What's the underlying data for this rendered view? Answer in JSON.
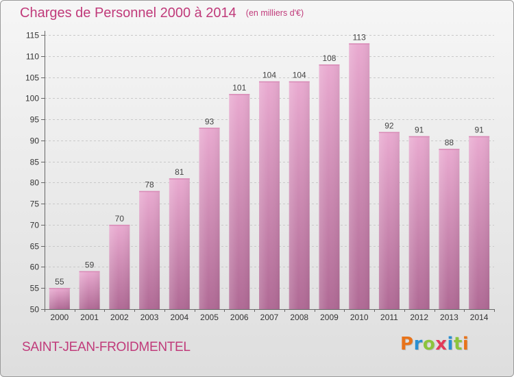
{
  "header": {
    "title": "Charges de Personnel 2000 à 2014",
    "unit": "(en milliers d'€)"
  },
  "footer": {
    "commune": "SAINT-JEAN-FROIDMENTEL",
    "logo_letters": [
      "P",
      "r",
      "o",
      "x",
      "i",
      "t",
      "i"
    ],
    "logo_colors": [
      "#e8731a",
      "#2a8fd1",
      "#8cc43c",
      "#e23a5a",
      "#2a8fd1",
      "#8cc43c",
      "#e8731a"
    ]
  },
  "colors": {
    "title": "#c03a7a",
    "bar_top": "#e9aad0",
    "bar_bottom": "#b06a95",
    "grid": "#c8c8c8"
  },
  "chart_data": {
    "type": "bar",
    "title": "Charges de Personnel 2000 à 2014",
    "xlabel": "",
    "ylabel": "",
    "categories": [
      "2000",
      "2001",
      "2002",
      "2003",
      "2004",
      "2005",
      "2006",
      "2007",
      "2008",
      "2009",
      "2010",
      "2011",
      "2012",
      "2013",
      "2014"
    ],
    "values": [
      55,
      59,
      70,
      78,
      81,
      93,
      101,
      104,
      104,
      108,
      113,
      92,
      91,
      88,
      91
    ],
    "ylim": [
      50,
      115
    ],
    "yticks": [
      50,
      55,
      60,
      65,
      70,
      75,
      80,
      85,
      90,
      95,
      100,
      105,
      110,
      115
    ],
    "grid": "horizontal dashed",
    "legend": "none"
  }
}
